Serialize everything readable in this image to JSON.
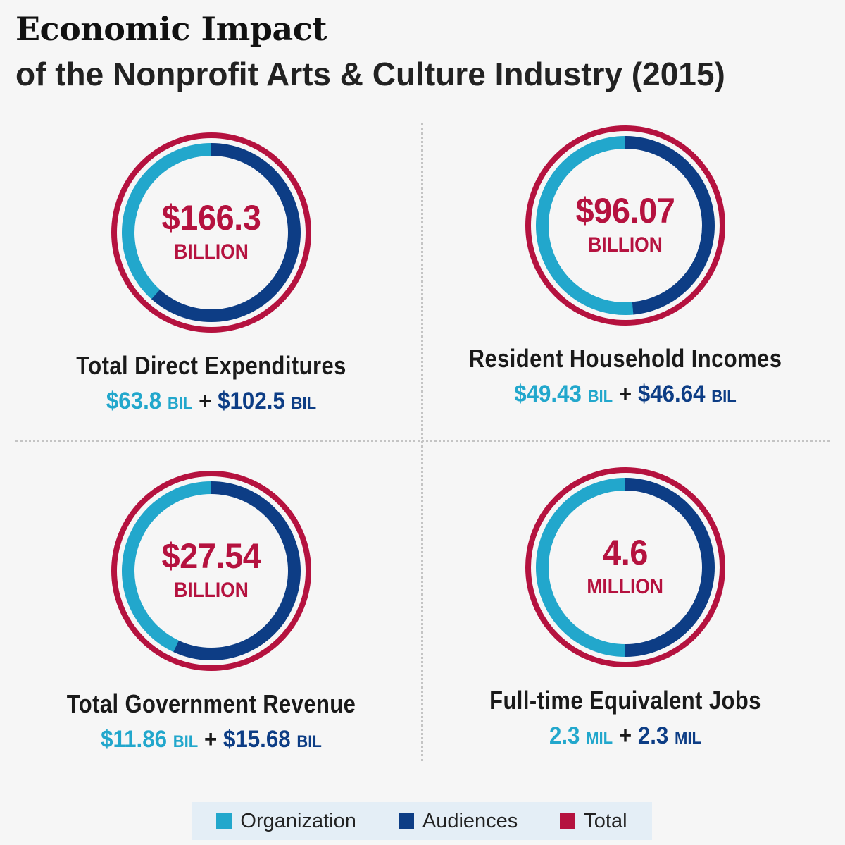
{
  "title": "Economic Impact",
  "subtitle": "of the Nonprofit Arts & Culture Industry (2015)",
  "colors": {
    "organization": "#22a7cc",
    "audiences": "#0d3d85",
    "total": "#b5123f"
  },
  "legend": [
    {
      "label": "Organization",
      "color": "#22a7cc"
    },
    {
      "label": "Audiences",
      "color": "#0d3d85"
    },
    {
      "label": "Total",
      "color": "#b5123f"
    }
  ],
  "panels": [
    {
      "value": "$166.3",
      "unit": "BILLION",
      "title": "Total Direct Expenditures",
      "org_value": "$63.8",
      "org_unit": "BIL",
      "aud_value": "$102.5",
      "aud_unit": "BIL"
    },
    {
      "value": "$96.07",
      "unit": "BILLION",
      "title": "Resident Household Incomes",
      "org_value": "$49.43",
      "org_unit": "BIL",
      "aud_value": "$46.64",
      "aud_unit": "BIL"
    },
    {
      "value": "$27.54",
      "unit": "BILLION",
      "title": "Total Government Revenue",
      "org_value": "$11.86",
      "org_unit": "BIL",
      "aud_value": "$15.68",
      "aud_unit": "BIL"
    },
    {
      "value": "4.6",
      "unit": "MILLION",
      "title": "Full-time Equivalent Jobs",
      "org_value": "2.3",
      "org_unit": "MIL",
      "aud_value": "2.3",
      "aud_unit": "MIL"
    }
  ],
  "chart_data": [
    {
      "type": "pie",
      "title": "Total Direct Expenditures",
      "total": 166.3,
      "categories": [
        "Organization",
        "Audiences"
      ],
      "values": [
        63.8,
        102.5
      ]
    },
    {
      "type": "pie",
      "title": "Resident Household Incomes",
      "total": 96.07,
      "categories": [
        "Organization",
        "Audiences"
      ],
      "values": [
        49.43,
        46.64
      ]
    },
    {
      "type": "pie",
      "title": "Total Government Revenue",
      "total": 27.54,
      "categories": [
        "Organization",
        "Audiences"
      ],
      "values": [
        11.86,
        15.68
      ]
    },
    {
      "type": "pie",
      "title": "Full-time Equivalent Jobs",
      "total": 4.6,
      "categories": [
        "Organization",
        "Audiences"
      ],
      "values": [
        2.3,
        2.3
      ]
    }
  ]
}
